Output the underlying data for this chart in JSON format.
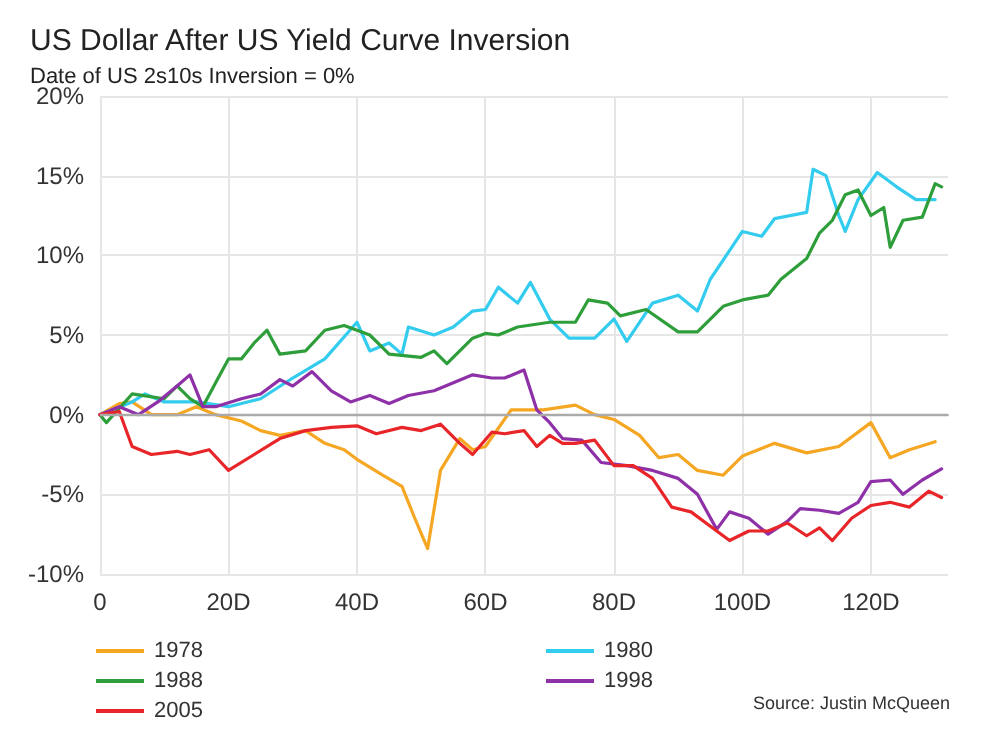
{
  "chart_data": {
    "type": "line",
    "title": "US Dollar After US Yield Curve Inversion",
    "subtitle": "Date of US 2s10s Inversion = 0%",
    "annotations": [
      "Source: Justin McQueen"
    ],
    "xlim": [
      0,
      132
    ],
    "xticks": [
      0,
      {
        "value": 20,
        "label": "20D"
      },
      {
        "value": 40,
        "label": "40D"
      },
      {
        "value": 60,
        "label": "60D"
      },
      {
        "value": 80,
        "label": "80D"
      },
      {
        "value": 100,
        "label": "100D"
      },
      {
        "value": 120,
        "label": "120D"
      }
    ],
    "ylim": [
      -10,
      20
    ],
    "yticks": [
      {
        "value": -10,
        "label": "-10%"
      },
      {
        "value": -5,
        "label": "-5%"
      },
      {
        "value": 0,
        "label": "0%"
      },
      {
        "value": 5,
        "label": "5%"
      },
      {
        "value": 10,
        "label": "10%"
      },
      {
        "value": 15,
        "label": "15%"
      },
      {
        "value": 20,
        "label": "20%"
      }
    ],
    "grid": true,
    "legend": "bottom left",
    "marker": "none",
    "line_style": "solid",
    "series": [
      {
        "name": "1978",
        "color": "#f5a623",
        "x": [
          0,
          3,
          5,
          8,
          12,
          15,
          18,
          22,
          25,
          28,
          32,
          35,
          38,
          40,
          44,
          47,
          49,
          51,
          53,
          56,
          58,
          60,
          64,
          69,
          74,
          77,
          80,
          84,
          87,
          90,
          93,
          97,
          100,
          105,
          110,
          115,
          120,
          123,
          126,
          130
        ],
        "values": [
          0,
          0.7,
          0.8,
          0,
          0,
          0.5,
          0,
          -0.4,
          -1,
          -1.3,
          -1,
          -1.8,
          -2.2,
          -2.8,
          -3.8,
          -4.5,
          -6.5,
          -8.4,
          -3.5,
          -1.5,
          -2.2,
          -2,
          0.3,
          0.3,
          0.6,
          0,
          -0.3,
          -1.3,
          -2.7,
          -2.5,
          -3.5,
          -3.8,
          -2.6,
          -1.8,
          -2.4,
          -2,
          -0.5,
          -2.7,
          -2.2,
          -1.7
        ]
      },
      {
        "name": "1980",
        "color": "#33ccee",
        "x": [
          0,
          5,
          7,
          10,
          15,
          20,
          25,
          30,
          35,
          40,
          42,
          45,
          47,
          48,
          52,
          55,
          58,
          60,
          62,
          65,
          67,
          70,
          73,
          77,
          80,
          82,
          86,
          90,
          93,
          95,
          100,
          103,
          105,
          110,
          111,
          113,
          115,
          116,
          118,
          121,
          124,
          127,
          130
        ],
        "values": [
          0,
          0.8,
          1.3,
          0.8,
          0.8,
          0.5,
          1,
          2.3,
          3.5,
          5.8,
          4,
          4.5,
          3.8,
          5.5,
          5,
          5.5,
          6.5,
          6.6,
          8,
          7,
          8.3,
          6,
          4.8,
          4.8,
          6,
          4.6,
          7,
          7.5,
          6.5,
          8.5,
          11.5,
          11.2,
          12.3,
          12.7,
          15.4,
          15,
          12.5,
          11.5,
          13.5,
          15.2,
          14.3,
          13.5,
          13.5
        ]
      },
      {
        "name": "1988",
        "color": "#2e9e3a",
        "x": [
          0,
          1,
          5,
          10,
          12,
          14,
          16,
          18,
          20,
          22,
          24,
          26,
          28,
          32,
          35,
          38,
          42,
          45,
          50,
          52,
          54,
          58,
          60,
          62,
          65,
          70,
          74,
          76,
          79,
          81,
          85,
          90,
          93,
          97,
          100,
          104,
          106,
          110,
          112,
          114,
          116,
          118,
          120,
          122,
          123,
          125,
          128,
          130,
          131
        ],
        "values": [
          0,
          -0.5,
          1.3,
          1,
          1.8,
          1,
          0.5,
          2,
          3.5,
          3.5,
          4.5,
          5.3,
          3.8,
          4,
          5.3,
          5.6,
          5,
          3.8,
          3.6,
          4,
          3.2,
          4.8,
          5.1,
          5,
          5.5,
          5.8,
          5.8,
          7.2,
          7,
          6.2,
          6.6,
          5.2,
          5.2,
          6.8,
          7.2,
          7.5,
          8.5,
          9.8,
          11.4,
          12.2,
          13.8,
          14.1,
          12.5,
          13,
          10.5,
          12.2,
          12.4,
          14.5,
          14.3
        ]
      },
      {
        "name": "1998",
        "color": "#8e30a8",
        "x": [
          0,
          3,
          6,
          9,
          12,
          14,
          16,
          18,
          22,
          25,
          28,
          30,
          33,
          36,
          39,
          42,
          45,
          48,
          52,
          55,
          58,
          61,
          63,
          66,
          68,
          70,
          72,
          75,
          78,
          82,
          86,
          90,
          93,
          96,
          98,
          101,
          104,
          107,
          109,
          112,
          115,
          118,
          120,
          123,
          125,
          128,
          131
        ],
        "values": [
          0,
          0.5,
          0,
          0.8,
          1.8,
          2.5,
          0.5,
          0.5,
          1,
          1.3,
          2.2,
          1.8,
          2.7,
          1.5,
          0.8,
          1.2,
          0.7,
          1.2,
          1.5,
          2,
          2.5,
          2.3,
          2.3,
          2.8,
          0.3,
          -0.5,
          -1.5,
          -1.6,
          -3,
          -3.2,
          -3.5,
          -4,
          -5,
          -7.2,
          -6.1,
          -6.5,
          -7.5,
          -6.7,
          -5.9,
          -6,
          -6.2,
          -5.5,
          -4.2,
          -4.1,
          -5,
          -4.1,
          -3.4
        ]
      },
      {
        "name": "2005",
        "color": "#e8262a",
        "x": [
          0,
          3,
          5,
          8,
          12,
          14,
          17,
          20,
          24,
          28,
          32,
          36,
          40,
          43,
          47,
          50,
          53,
          56,
          58,
          61,
          63,
          66,
          68,
          70,
          72,
          74,
          77,
          80,
          83,
          86,
          89,
          92,
          95,
          98,
          101,
          104,
          107,
          110,
          112,
          114,
          117,
          120,
          123,
          126,
          129,
          131
        ],
        "values": [
          0,
          0.2,
          -2,
          -2.5,
          -2.3,
          -2.5,
          -2.2,
          -3.5,
          -2.5,
          -1.5,
          -1,
          -0.8,
          -0.7,
          -1.2,
          -0.8,
          -1,
          -0.6,
          -1.8,
          -2.5,
          -1.1,
          -1.2,
          -1,
          -2,
          -1.3,
          -1.8,
          -1.8,
          -1.6,
          -3.2,
          -3.2,
          -4,
          -5.8,
          -6.1,
          -7,
          -7.9,
          -7.3,
          -7.3,
          -6.8,
          -7.6,
          -7.1,
          -7.9,
          -6.5,
          -5.7,
          -5.5,
          -5.8,
          -4.8,
          -5.2
        ]
      }
    ]
  }
}
